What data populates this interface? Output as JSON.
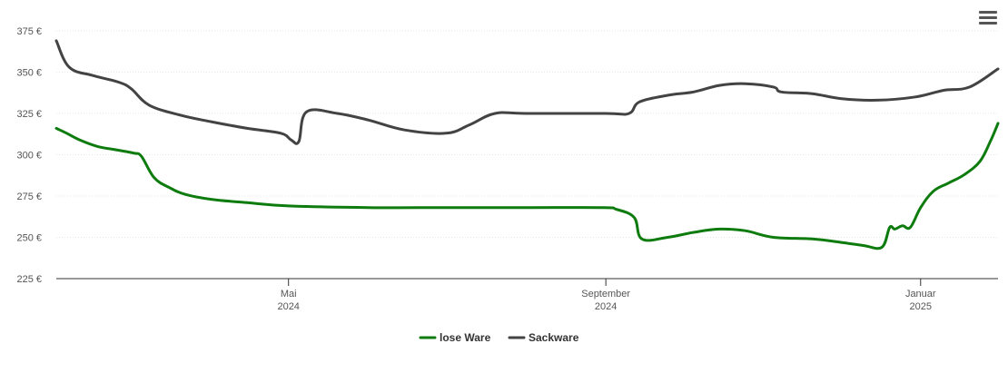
{
  "chart_data": {
    "type": "line",
    "y_ticks": [
      {
        "value": 225,
        "label": "225 €"
      },
      {
        "value": 250,
        "label": "250 €"
      },
      {
        "value": 275,
        "label": "275 €"
      },
      {
        "value": 300,
        "label": "300 €"
      },
      {
        "value": 325,
        "label": "325 €"
      },
      {
        "value": 350,
        "label": "350 €"
      },
      {
        "value": 375,
        "label": "375 €"
      }
    ],
    "ylim": [
      225,
      375
    ],
    "xlim": [
      "2024-02-01",
      "2025-01-31"
    ],
    "x_ticks": [
      {
        "date": "2024-05-01",
        "line1": "Mai",
        "line2": "2024"
      },
      {
        "date": "2024-09-01",
        "line1": "September",
        "line2": "2024"
      },
      {
        "date": "2025-01-01",
        "line1": "Januar",
        "line2": "2025"
      }
    ],
    "grid": true,
    "legend_position": "bottom-center",
    "series": [
      {
        "name": "lose Ware",
        "color": "#0e7b0e",
        "points": [
          [
            "2024-02-01",
            316
          ],
          [
            "2024-02-05",
            313
          ],
          [
            "2024-02-10",
            309
          ],
          [
            "2024-02-17",
            305
          ],
          [
            "2024-02-24",
            303
          ],
          [
            "2024-03-02",
            301
          ],
          [
            "2024-03-05",
            299
          ],
          [
            "2024-03-10",
            286
          ],
          [
            "2024-03-16",
            280
          ],
          [
            "2024-03-22",
            276
          ],
          [
            "2024-04-01",
            273
          ],
          [
            "2024-04-15",
            271
          ],
          [
            "2024-05-01",
            269
          ],
          [
            "2024-06-01",
            268
          ],
          [
            "2024-07-01",
            268
          ],
          [
            "2024-08-01",
            268
          ],
          [
            "2024-08-31",
            268
          ],
          [
            "2024-09-05",
            267
          ],
          [
            "2024-09-12",
            262
          ],
          [
            "2024-09-15",
            249
          ],
          [
            "2024-09-25",
            250
          ],
          [
            "2024-10-05",
            253
          ],
          [
            "2024-10-15",
            255
          ],
          [
            "2024-10-25",
            254
          ],
          [
            "2024-11-05",
            250
          ],
          [
            "2024-11-20",
            249
          ],
          [
            "2024-12-01",
            247
          ],
          [
            "2024-12-10",
            245
          ],
          [
            "2024-12-17",
            244
          ],
          [
            "2024-12-20",
            256
          ],
          [
            "2024-12-22",
            255
          ],
          [
            "2024-12-25",
            257
          ],
          [
            "2024-12-28",
            256
          ],
          [
            "2025-01-01",
            268
          ],
          [
            "2025-01-06",
            278
          ],
          [
            "2025-01-12",
            283
          ],
          [
            "2025-01-18",
            288
          ],
          [
            "2025-01-24",
            296
          ],
          [
            "2025-01-28",
            308
          ],
          [
            "2025-01-31",
            319
          ]
        ]
      },
      {
        "name": "Sackware",
        "color": "#434343",
        "points": [
          [
            "2024-02-01",
            369
          ],
          [
            "2024-02-06",
            353
          ],
          [
            "2024-02-15",
            348
          ],
          [
            "2024-02-25",
            344
          ],
          [
            "2024-03-01",
            340
          ],
          [
            "2024-03-08",
            330
          ],
          [
            "2024-03-20",
            324
          ],
          [
            "2024-04-01",
            320
          ],
          [
            "2024-04-15",
            316
          ],
          [
            "2024-04-28",
            313
          ],
          [
            "2024-05-02",
            309
          ],
          [
            "2024-05-05",
            308
          ],
          [
            "2024-05-08",
            326
          ],
          [
            "2024-05-20",
            325
          ],
          [
            "2024-06-01",
            321
          ],
          [
            "2024-06-15",
            315
          ],
          [
            "2024-07-01",
            313
          ],
          [
            "2024-07-10",
            318
          ],
          [
            "2024-07-20",
            325
          ],
          [
            "2024-08-01",
            325
          ],
          [
            "2024-09-01",
            325
          ],
          [
            "2024-09-10",
            325
          ],
          [
            "2024-09-14",
            332
          ],
          [
            "2024-09-25",
            336
          ],
          [
            "2024-10-05",
            338
          ],
          [
            "2024-10-15",
            342
          ],
          [
            "2024-10-25",
            343
          ],
          [
            "2024-11-05",
            341
          ],
          [
            "2024-11-08",
            338
          ],
          [
            "2024-11-20",
            337
          ],
          [
            "2024-12-01",
            334
          ],
          [
            "2024-12-15",
            333
          ],
          [
            "2024-12-30",
            335
          ],
          [
            "2025-01-10",
            339
          ],
          [
            "2025-01-20",
            341
          ],
          [
            "2025-01-31",
            352
          ]
        ]
      }
    ]
  }
}
